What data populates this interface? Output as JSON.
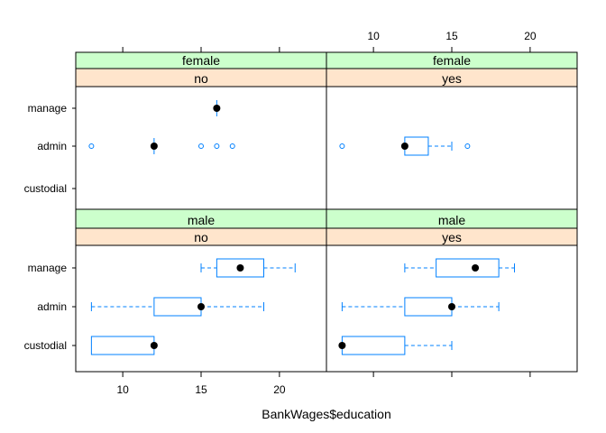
{
  "chart_data": {
    "type": "bwplot",
    "xlabel": "BankWages$education",
    "categories": [
      "custodial",
      "admin",
      "manage"
    ],
    "x_ticks": [
      10,
      15,
      20
    ],
    "xlim": [
      7,
      23
    ],
    "colors": {
      "gender_strip": "#CCFFCC",
      "minority_strip": "#FFE5CC",
      "box": "#0080FF",
      "dot": "#000000",
      "panel_border": "#000000"
    },
    "panels": [
      {
        "gender": "female",
        "minority": "no",
        "row": "top",
        "col": "left",
        "boxes": [
          {
            "category": "manage",
            "min": 16,
            "q1": 16,
            "median": 16,
            "q3": 16,
            "max": 16,
            "outliers": []
          },
          {
            "category": "admin",
            "min": 12,
            "q1": 12,
            "median": 12,
            "q3": 12,
            "max": 12,
            "outliers": [
              8,
              15,
              16,
              17
            ]
          }
        ]
      },
      {
        "gender": "female",
        "minority": "yes",
        "row": "top",
        "col": "right",
        "boxes": [
          {
            "category": "admin",
            "min": 12,
            "q1": 12,
            "median": 12,
            "q3": 13.5,
            "max": 15,
            "outliers": [
              8,
              16
            ]
          }
        ]
      },
      {
        "gender": "male",
        "minority": "no",
        "row": "bottom",
        "col": "left",
        "boxes": [
          {
            "category": "manage",
            "min": 15,
            "q1": 16,
            "median": 17.5,
            "q3": 19,
            "max": 21,
            "outliers": []
          },
          {
            "category": "admin",
            "min": 8,
            "q1": 12,
            "median": 15,
            "q3": 15,
            "max": 19,
            "outliers": []
          },
          {
            "category": "custodial",
            "min": 8,
            "q1": 8,
            "median": 12,
            "q3": 12,
            "max": 12,
            "outliers": []
          }
        ]
      },
      {
        "gender": "male",
        "minority": "yes",
        "row": "bottom",
        "col": "right",
        "boxes": [
          {
            "category": "manage",
            "min": 12,
            "q1": 14,
            "median": 16.5,
            "q3": 18,
            "max": 19,
            "outliers": []
          },
          {
            "category": "admin",
            "min": 8,
            "q1": 12,
            "median": 15,
            "q3": 15,
            "max": 18,
            "outliers": []
          },
          {
            "category": "custodial",
            "min": 8,
            "q1": 8,
            "median": 8,
            "q3": 12,
            "max": 15,
            "outliers": []
          }
        ]
      }
    ]
  }
}
